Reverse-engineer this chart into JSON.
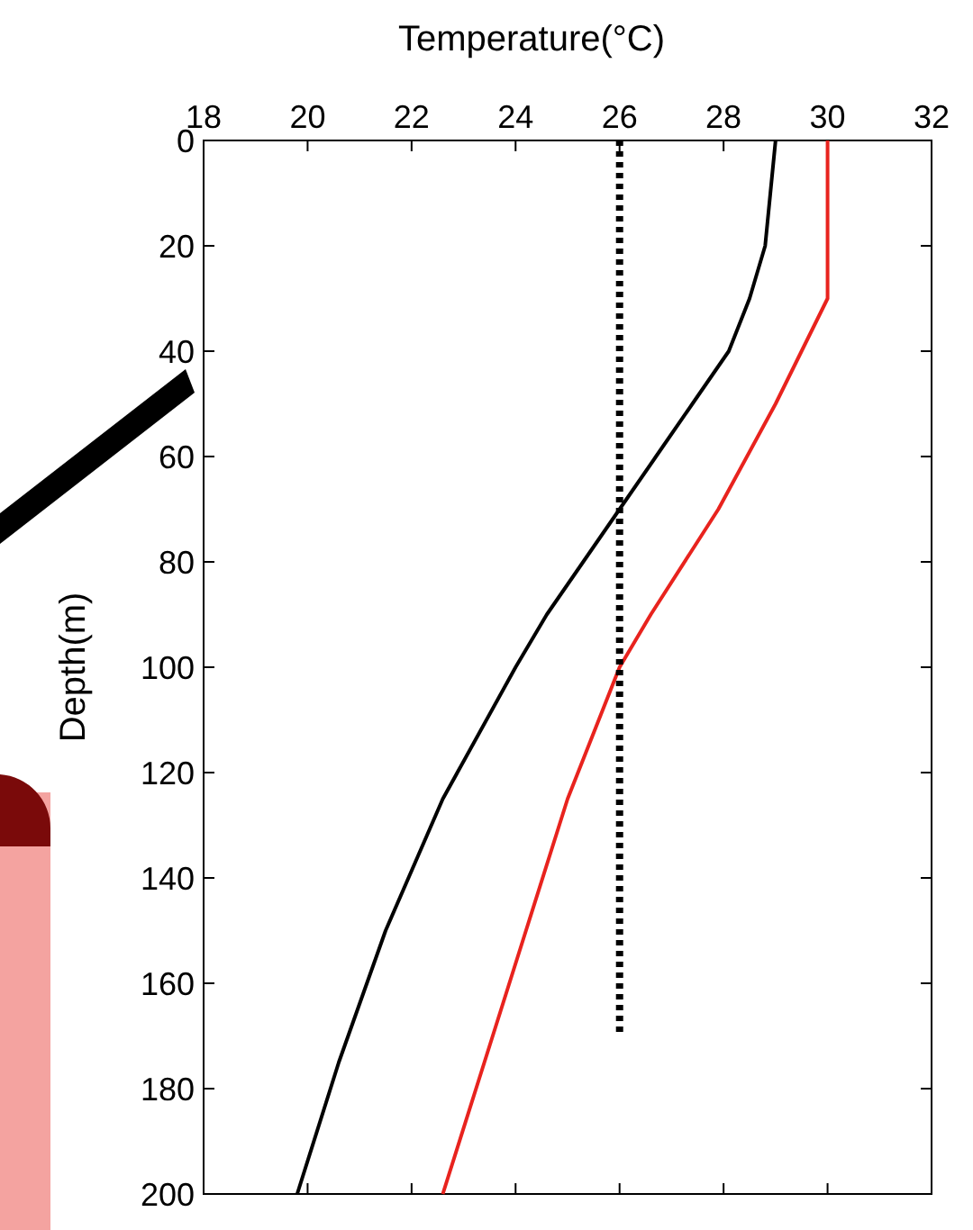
{
  "chart_data": {
    "type": "line",
    "xlabel": "Temperature(°C)",
    "ylabel": "Depth(m)",
    "xlim": [
      18,
      32
    ],
    "xticks": [
      18,
      20,
      22,
      24,
      26,
      28,
      30,
      32
    ],
    "ylim": [
      200,
      0
    ],
    "yticks": [
      0,
      20,
      40,
      60,
      80,
      100,
      120,
      140,
      160,
      180,
      200
    ],
    "grid": false,
    "series": [
      {
        "color": "#000000",
        "line_style": "solid",
        "x": [
          29.0,
          28.9,
          28.8,
          28.5,
          28.1,
          27.4,
          26.7,
          26.0,
          25.3,
          24.6,
          24.0,
          22.6,
          21.5,
          20.6,
          19.8
        ],
        "values": [
          0,
          10,
          20,
          30,
          40,
          50,
          60,
          70,
          80,
          90,
          100,
          125,
          150,
          175,
          200
        ]
      },
      {
        "color": "#e8231e",
        "line_style": "solid",
        "x": [
          30.0,
          30.0,
          29.0,
          27.9,
          26.6,
          26.0,
          25.0,
          24.2,
          23.4,
          22.6
        ],
        "values": [
          0,
          30,
          50,
          70,
          90,
          100,
          125,
          150,
          175,
          200
        ]
      },
      {
        "color": "#000000",
        "line_style": "dotted",
        "x": [
          26,
          26,
          26
        ],
        "values": [
          0,
          85,
          170
        ]
      }
    ]
  }
}
